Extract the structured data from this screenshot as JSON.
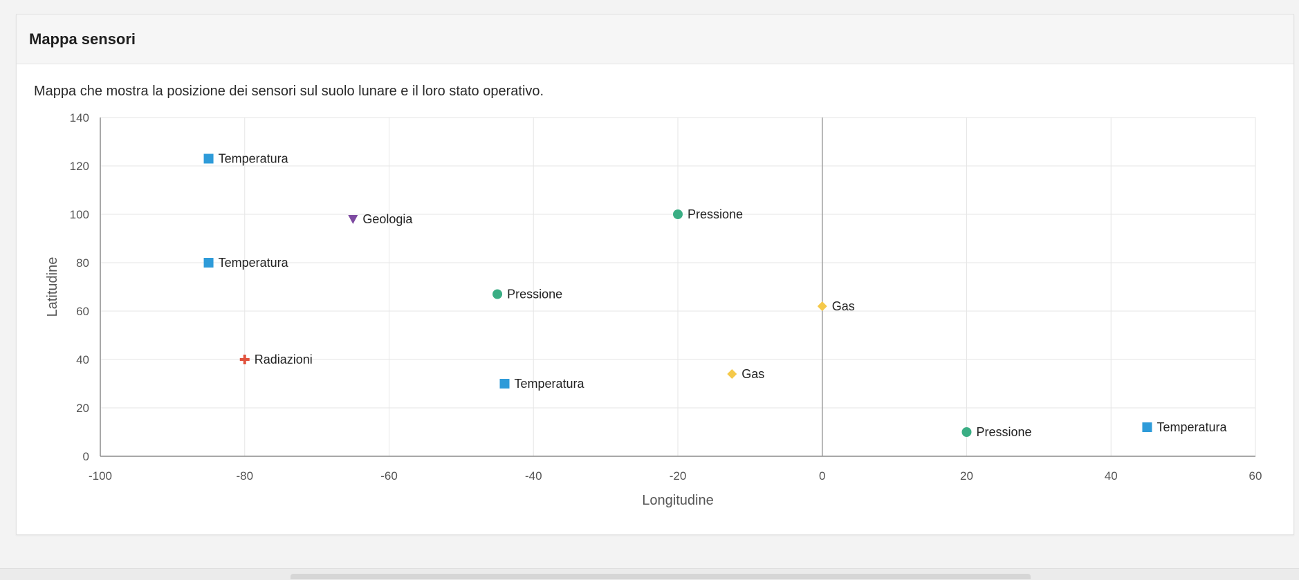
{
  "card": {
    "title": "Mappa sensori",
    "description": "Mappa che mostra la posizione dei sensori sul suolo lunare e il loro stato operativo."
  },
  "colors": {
    "Temperatura": "#2e9bd9",
    "Pressione": "#3aae84",
    "Gas": "#f5c94a",
    "Geologia": "#7d4aa1",
    "Radiazioni": "#e0523d",
    "grid": "#e6e6e6",
    "axis": "#8c8c8c",
    "zero_line": "#9a9a9a"
  },
  "chart_data": {
    "type": "scatter",
    "xlabel": "Longitudine",
    "ylabel": "Latitudine",
    "xlim": [
      -100,
      60
    ],
    "ylim": [
      0,
      140
    ],
    "xticks": [
      -100,
      -80,
      -60,
      -40,
      -20,
      0,
      20,
      40,
      60
    ],
    "yticks": [
      0,
      20,
      40,
      60,
      80,
      100,
      120,
      140
    ],
    "grid": true,
    "points": [
      {
        "x": -85,
        "y": 123,
        "label": "Temperatura",
        "symbol": "square"
      },
      {
        "x": -65,
        "y": 98,
        "label": "Geologia",
        "symbol": "triangle-down"
      },
      {
        "x": -20,
        "y": 100,
        "label": "Pressione",
        "symbol": "circle"
      },
      {
        "x": -85,
        "y": 80,
        "label": "Temperatura",
        "symbol": "square"
      },
      {
        "x": -45,
        "y": 67,
        "label": "Pressione",
        "symbol": "circle"
      },
      {
        "x": 0,
        "y": 62,
        "label": "Gas",
        "symbol": "diamond"
      },
      {
        "x": -80,
        "y": 40,
        "label": "Radiazioni",
        "symbol": "cross"
      },
      {
        "x": -12.5,
        "y": 34,
        "label": "Gas",
        "symbol": "diamond"
      },
      {
        "x": -44,
        "y": 30,
        "label": "Temperatura",
        "symbol": "square"
      },
      {
        "x": 20,
        "y": 10,
        "label": "Pressione",
        "symbol": "circle"
      },
      {
        "x": 45,
        "y": 12,
        "label": "Temperatura",
        "symbol": "square"
      }
    ]
  }
}
